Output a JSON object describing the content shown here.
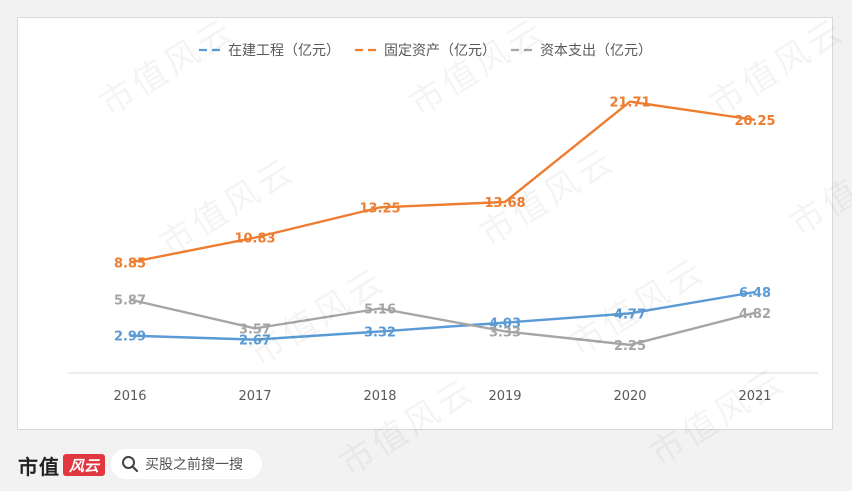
{
  "chart_data": {
    "type": "line",
    "title": "",
    "xlabel": "",
    "ylabel": "",
    "categories": [
      "2016",
      "2017",
      "2018",
      "2019",
      "2020",
      "2021"
    ],
    "ylim": [
      0,
      24
    ],
    "grid": false,
    "legend": "top-center",
    "series": [
      {
        "name": "在建工程（亿元）",
        "color": "#5b9bd5",
        "values": [
          2.99,
          2.67,
          3.32,
          4.03,
          4.77,
          6.48
        ],
        "labels": [
          "2.99",
          "2.67",
          "3.32",
          "4.03",
          "4.77",
          "6.48"
        ]
      },
      {
        "name": "固定资产（亿元）",
        "color": "#ed7d31",
        "values": [
          8.85,
          10.83,
          13.25,
          13.68,
          21.71,
          20.25
        ],
        "labels": [
          "8.85",
          "10.83",
          "13.25",
          "13.68",
          "21.71",
          "20.25"
        ]
      },
      {
        "name": "资本支出（亿元）",
        "color": "#a5a5a5",
        "values": [
          5.87,
          3.57,
          5.16,
          3.33,
          2.25,
          4.82
        ],
        "labels": [
          "5.87",
          "3.57",
          "5.16",
          "3.33",
          "2.25",
          "4.82"
        ]
      }
    ]
  },
  "watermark_text": "市值风云",
  "footer": {
    "brand_name": "市值",
    "brand_logo_text": "风云",
    "search_icon": "search-icon",
    "search_placeholder": "买股之前搜一搜"
  }
}
